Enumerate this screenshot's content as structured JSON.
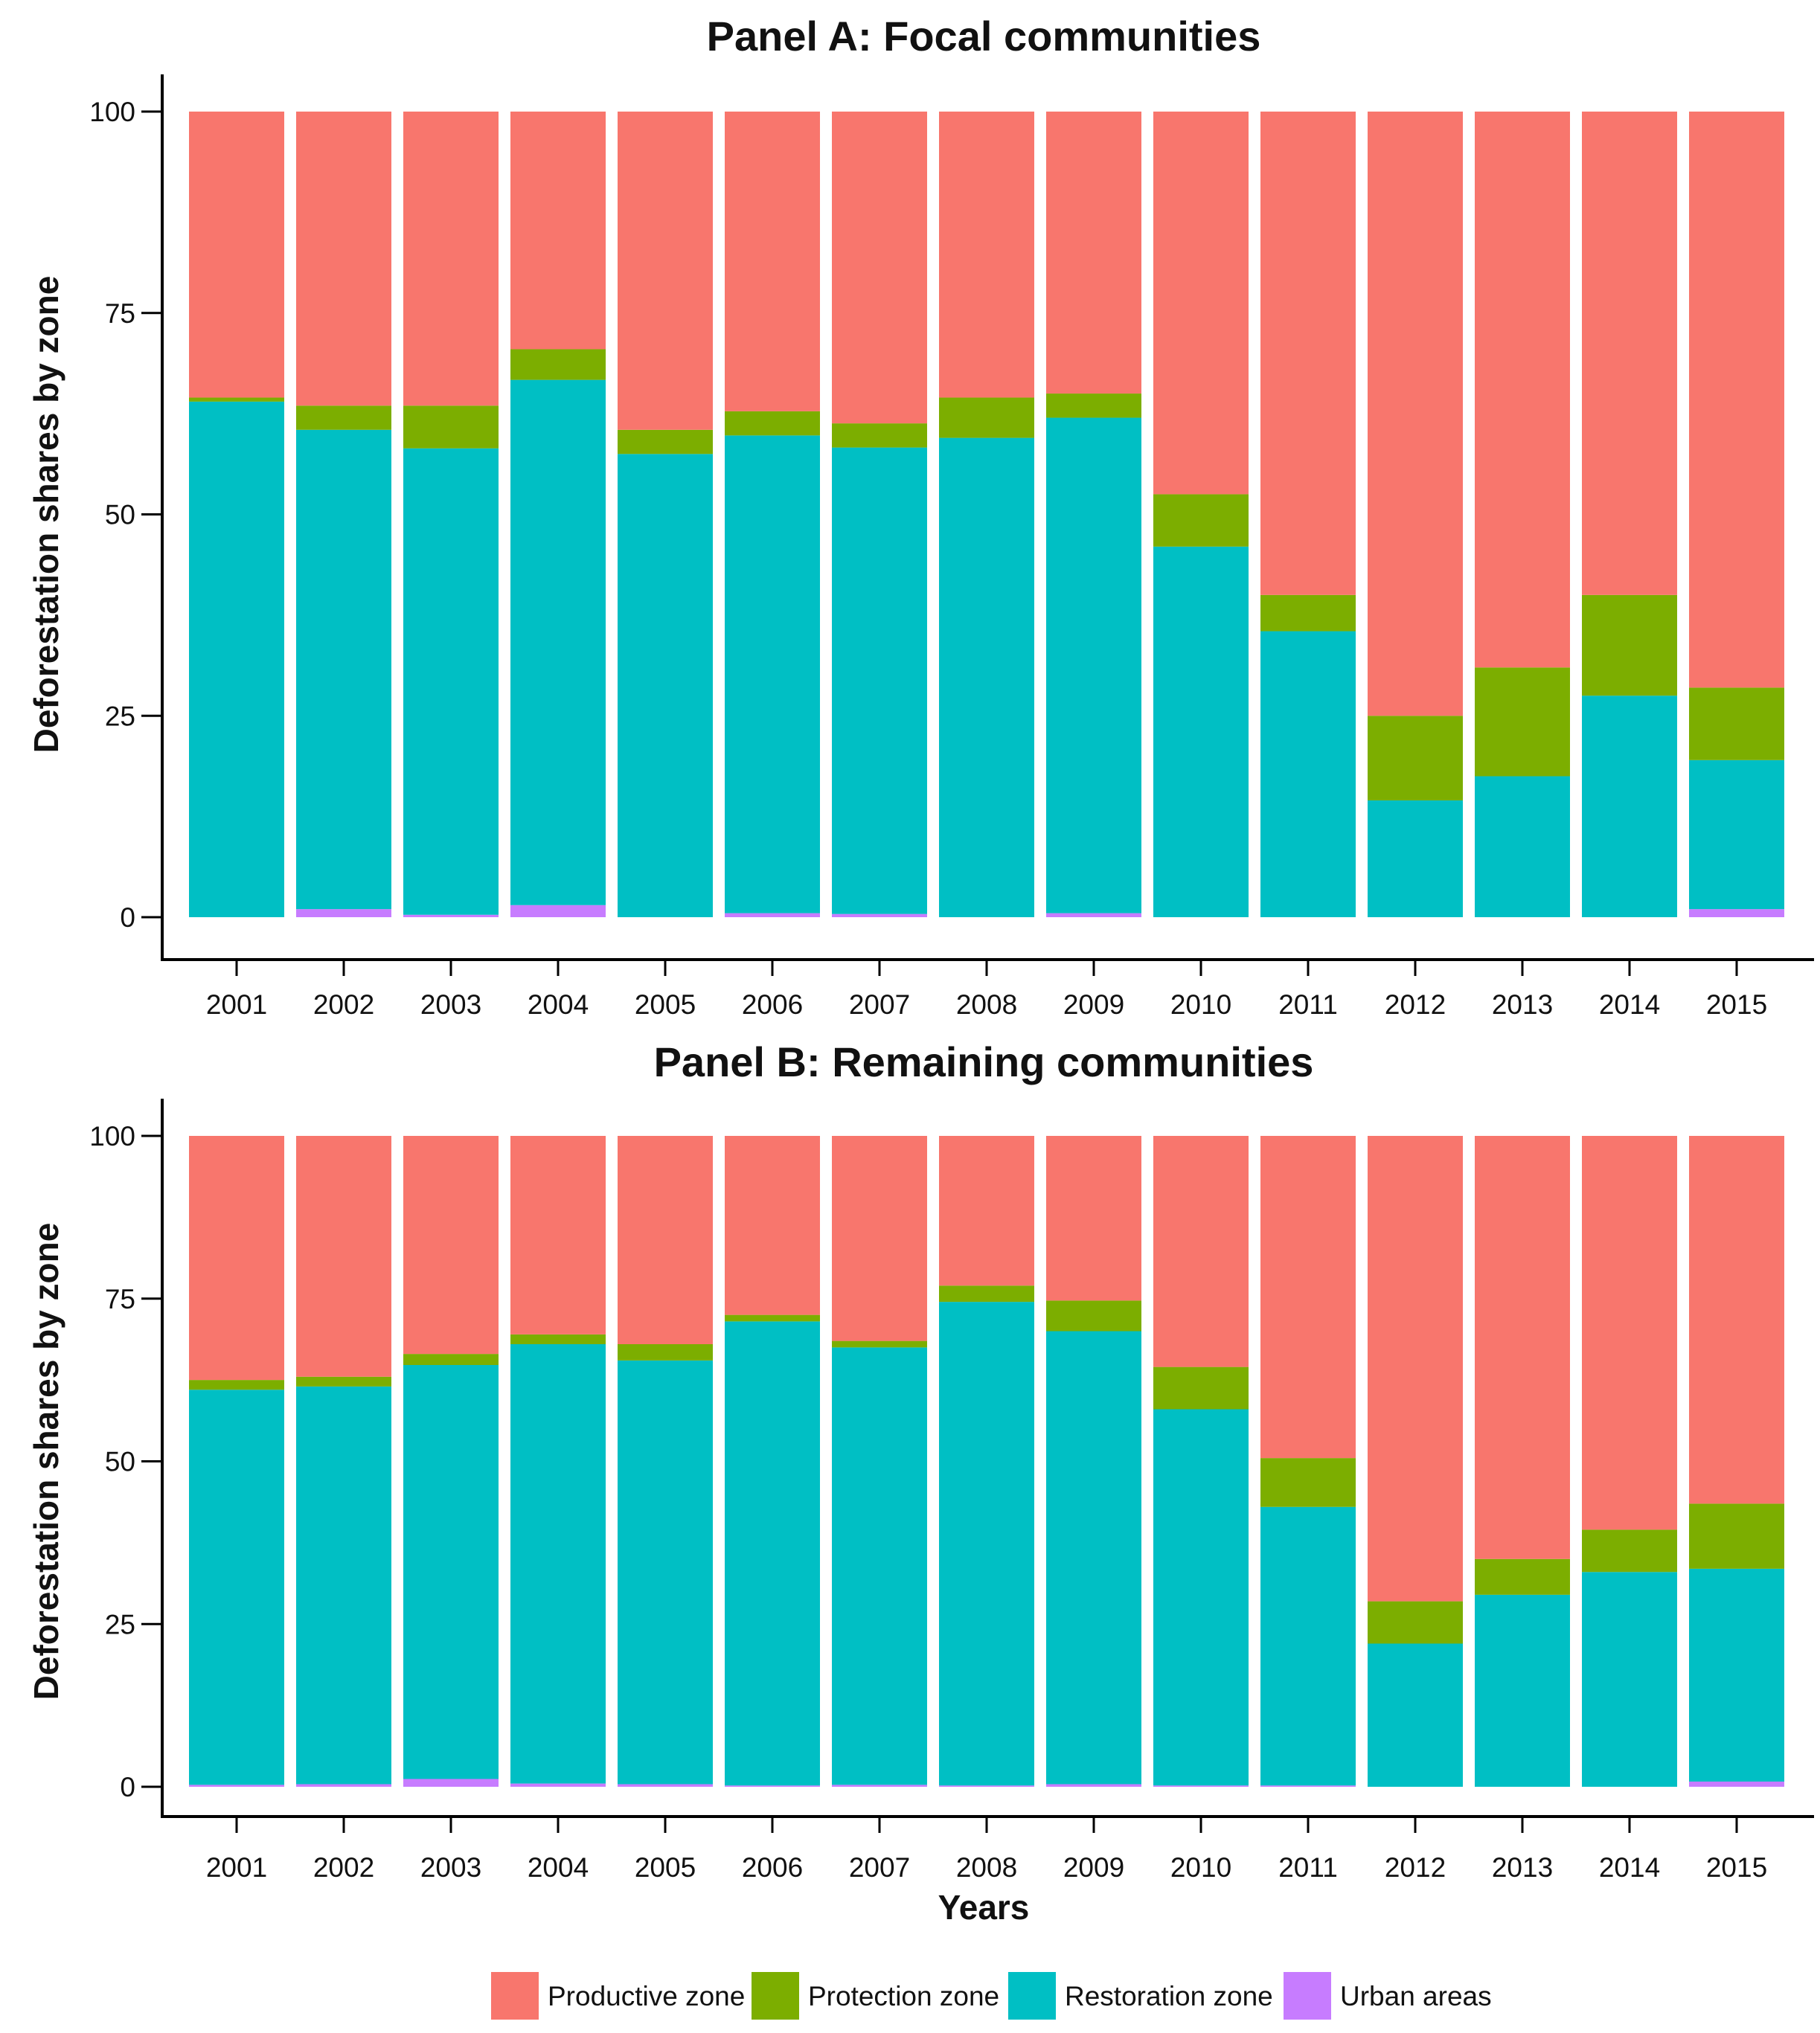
{
  "chart_data": [
    {
      "type": "bar",
      "stacked": true,
      "title": "Panel A: Focal communities",
      "ylabel": "Deforestation shares by zone",
      "xlabel": "",
      "ylim": [
        0,
        100
      ],
      "yticks": [
        0,
        25,
        50,
        75,
        100
      ],
      "categories": [
        "2001",
        "2002",
        "2003",
        "2004",
        "2005",
        "2006",
        "2007",
        "2008",
        "2009",
        "2010",
        "2011",
        "2012",
        "2013",
        "2014",
        "2015"
      ],
      "series": [
        {
          "name": "Urban areas",
          "color": "#c77cff",
          "values": [
            0,
            1,
            0.3,
            1.5,
            0,
            0.5,
            0.4,
            0,
            0.5,
            0,
            0,
            0,
            0,
            0,
            1
          ]
        },
        {
          "name": "Restoration zone",
          "color": "#00bfc4",
          "values": [
            64,
            59.5,
            57.9,
            65.2,
            57.5,
            59.3,
            57.9,
            59.5,
            61.5,
            46,
            35.5,
            14.5,
            17.5,
            27.5,
            18.5
          ]
        },
        {
          "name": "Protection zone",
          "color": "#7cae00",
          "values": [
            0.5,
            3,
            5.3,
            3.8,
            3,
            3,
            3,
            5,
            3,
            6.5,
            4.5,
            10.5,
            13.5,
            12.5,
            9
          ]
        },
        {
          "name": "Productive zone",
          "color": "#f8766d",
          "values": [
            35.5,
            36.5,
            36.5,
            29.5,
            39.5,
            37.2,
            38.7,
            35.5,
            35,
            47.5,
            60,
            75,
            69,
            60,
            71.5
          ]
        }
      ]
    },
    {
      "type": "bar",
      "stacked": true,
      "title": "Panel B: Remaining communities",
      "ylabel": "Deforestation shares by zone",
      "xlabel": "Years",
      "ylim": [
        0,
        100
      ],
      "yticks": [
        0,
        25,
        50,
        75,
        100
      ],
      "categories": [
        "2001",
        "2002",
        "2003",
        "2004",
        "2005",
        "2006",
        "2007",
        "2008",
        "2009",
        "2010",
        "2011",
        "2012",
        "2013",
        "2014",
        "2015"
      ],
      "series": [
        {
          "name": "Urban areas",
          "color": "#c77cff",
          "values": [
            0.3,
            0.4,
            1.2,
            0.5,
            0.4,
            0.2,
            0.3,
            0.2,
            0.4,
            0.2,
            0.2,
            0,
            0,
            0,
            0.8
          ]
        },
        {
          "name": "Restoration zone",
          "color": "#00bfc4",
          "values": [
            60.7,
            61.1,
            63.6,
            67.5,
            65.1,
            71.3,
            67.2,
            74.3,
            69.6,
            57.8,
            42.8,
            22,
            29.5,
            33,
            32.7
          ]
        },
        {
          "name": "Protection zone",
          "color": "#7cae00",
          "values": [
            1.5,
            1.5,
            1.7,
            1.5,
            2.5,
            1,
            1,
            2.5,
            4.7,
            6.5,
            7.5,
            6.5,
            5.5,
            6.5,
            10
          ]
        },
        {
          "name": "Productive zone",
          "color": "#f8766d",
          "values": [
            37.5,
            37,
            33.5,
            30.5,
            32,
            27.5,
            31.5,
            23,
            25.3,
            35.5,
            49.5,
            71.5,
            65,
            60.5,
            56.5
          ]
        }
      ]
    }
  ],
  "legend": {
    "items": [
      {
        "label": "Productive zone",
        "color": "#f8766d"
      },
      {
        "label": "Protection zone",
        "color": "#7cae00"
      },
      {
        "label": "Restoration zone",
        "color": "#00bfc4"
      },
      {
        "label": "Urban areas",
        "color": "#c77cff"
      }
    ]
  }
}
